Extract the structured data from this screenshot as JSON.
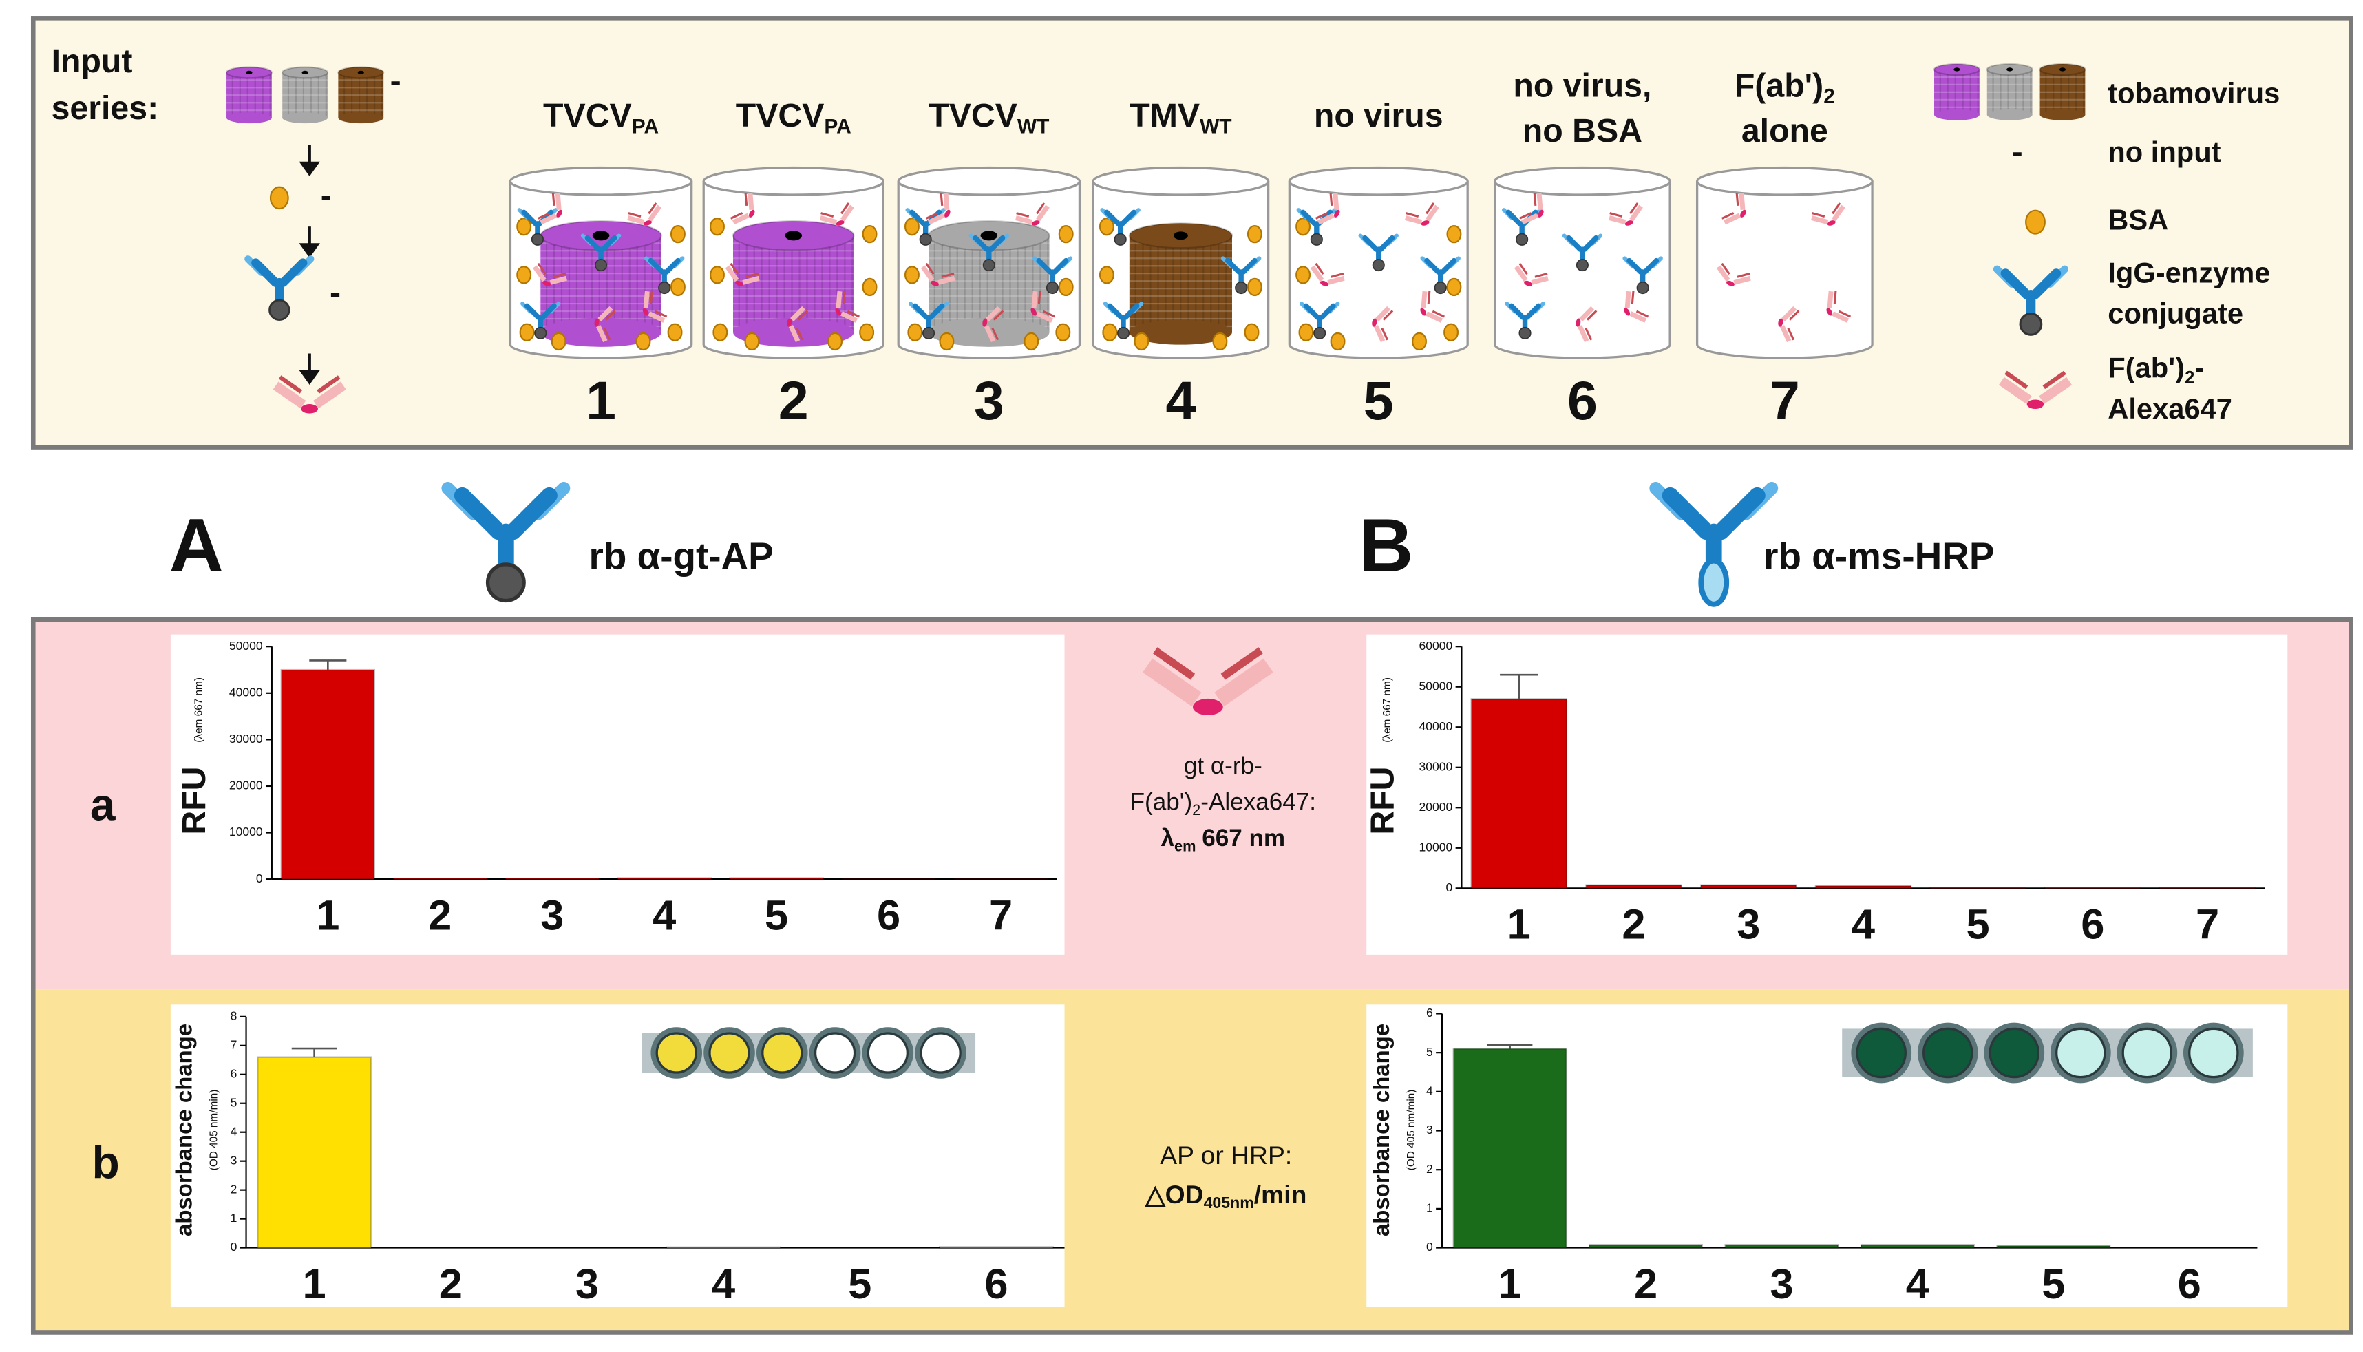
{
  "schematic": {
    "input_label_1": "Input",
    "input_label_2": "series:",
    "no_input_symbol": "-",
    "tubes": [
      {
        "name": "TVCV",
        "sub": "PA",
        "number": "1"
      },
      {
        "name": "TVCV",
        "sub": "PA",
        "number": "2"
      },
      {
        "name": "TVCV",
        "sub": "WT",
        "number": "3"
      },
      {
        "name": "TMV",
        "sub": "WT",
        "number": "4"
      },
      {
        "name": "no virus",
        "number": "5"
      },
      {
        "name": "no virus,",
        "name2": "no BSA",
        "number": "6"
      },
      {
        "name": "F(ab')",
        "sub": "2",
        "name2": "alone",
        "number": "7"
      }
    ],
    "legend": {
      "tobamovirus": "tobamovirus",
      "no_input": "no input",
      "bsa": "BSA",
      "igg_1": "IgG-enzyme",
      "igg_2": "conjugate",
      "fab_1": "F(ab')",
      "fab_sub": "2",
      "fab_tail": "-",
      "fab_2": "Alexa647"
    }
  },
  "panels": [
    {
      "letter": "A",
      "antibody": "rb α-gt-AP"
    },
    {
      "letter": "B",
      "antibody": "rb α-ms-HRP"
    }
  ],
  "rows": [
    {
      "letter": "a",
      "readout": {
        "line1": "gt α-rb-",
        "line2": "F(ab')",
        "line2_sub": "2",
        "line2_tail": "-Alexa647:",
        "line3": "λ",
        "line3_sub": "em",
        "line3_tail": "667 nm"
      }
    },
    {
      "letter": "b",
      "readout": {
        "line1": "AP or HRP:",
        "line2": "△OD",
        "line2_sub": "405nm",
        "line2_tail": "/min"
      }
    }
  ],
  "chart_data": [
    {
      "type": "bar",
      "ylabel": "RFU",
      "ylabel_note": "(λem 667 nm)",
      "color": "#d40000",
      "categories": [
        "1",
        "2",
        "3",
        "4",
        "5",
        "6",
        "7"
      ],
      "values": [
        45000,
        150,
        150,
        250,
        250,
        50,
        50
      ],
      "errors": [
        2000,
        null,
        null,
        null,
        null,
        null,
        null
      ],
      "ylim": [
        0,
        50000
      ],
      "yticks": [
        0,
        10000,
        20000,
        30000,
        40000,
        50000
      ]
    },
    {
      "type": "bar",
      "ylabel": "RFU",
      "ylabel_note": "(λem 667 nm)",
      "color": "#d40000",
      "categories": [
        "1",
        "2",
        "3",
        "4",
        "5",
        "6",
        "7"
      ],
      "values": [
        47000,
        800,
        800,
        600,
        200,
        100,
        200
      ],
      "errors": [
        6000,
        null,
        null,
        null,
        null,
        null,
        null
      ],
      "ylim": [
        0,
        60000
      ],
      "yticks": [
        0,
        10000,
        20000,
        30000,
        40000,
        50000,
        60000
      ]
    },
    {
      "type": "bar",
      "ylabel": "absorbance change",
      "ylabel_note": "(OD 405 nm/min)",
      "color": "#ffe000",
      "categories": [
        "1",
        "2",
        "3",
        "4",
        "5",
        "6"
      ],
      "values": [
        6.6,
        0,
        0,
        0.02,
        0,
        0.03
      ],
      "errors": [
        0.3,
        null,
        null,
        null,
        null,
        null
      ],
      "ylim": [
        0,
        8
      ],
      "yticks": [
        0,
        1,
        2,
        3,
        4,
        5,
        6,
        7,
        8
      ]
    },
    {
      "type": "bar",
      "ylabel": "absorbance change",
      "ylabel_note": "(OD 405 nm/min)",
      "color": "#1a6b1a",
      "categories": [
        "1",
        "2",
        "3",
        "4",
        "5",
        "6"
      ],
      "values": [
        5.1,
        0.08,
        0.08,
        0.08,
        0.05,
        0
      ],
      "errors": [
        0.1,
        null,
        null,
        null,
        null,
        null
      ],
      "ylim": [
        0,
        6
      ],
      "yticks": [
        0,
        1,
        2,
        3,
        4,
        5,
        6
      ]
    }
  ]
}
